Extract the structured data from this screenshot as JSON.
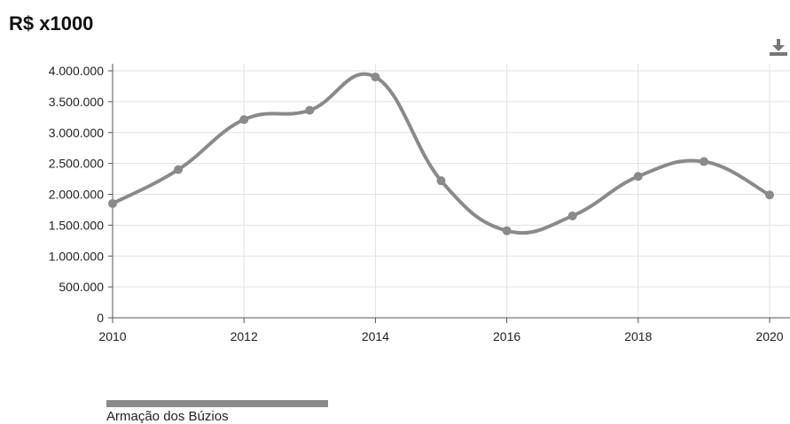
{
  "chart_data": {
    "type": "line",
    "title": "R$ x1000",
    "xlabel": "",
    "ylabel": "",
    "x": [
      2010,
      2011,
      2012,
      2013,
      2014,
      2015,
      2016,
      2017,
      2018,
      2019,
      2020
    ],
    "series": [
      {
        "name": "Armação dos Búzios",
        "values": [
          1850000,
          2400000,
          3210000,
          3360000,
          3900000,
          2220000,
          1410000,
          1650000,
          2290000,
          2530000,
          1990000
        ]
      }
    ],
    "xlim": [
      2010,
      2020
    ],
    "ylim": [
      0,
      4000000
    ],
    "x_ticks": [
      "2010",
      "2012",
      "2014",
      "2016",
      "2018",
      "2020"
    ],
    "y_ticks": [
      "0",
      "500.000",
      "1.000.000",
      "1.500.000",
      "2.000.000",
      "2.500.000",
      "3.000.000",
      "3.500.000",
      "4.000.000"
    ],
    "grid": true,
    "legend_position": "bottom-left",
    "colors": {
      "series": "#8a8a8a",
      "grid": "#e2e2e2",
      "axis": "#555555"
    }
  },
  "toolbar": {
    "download_icon": "download-icon"
  }
}
